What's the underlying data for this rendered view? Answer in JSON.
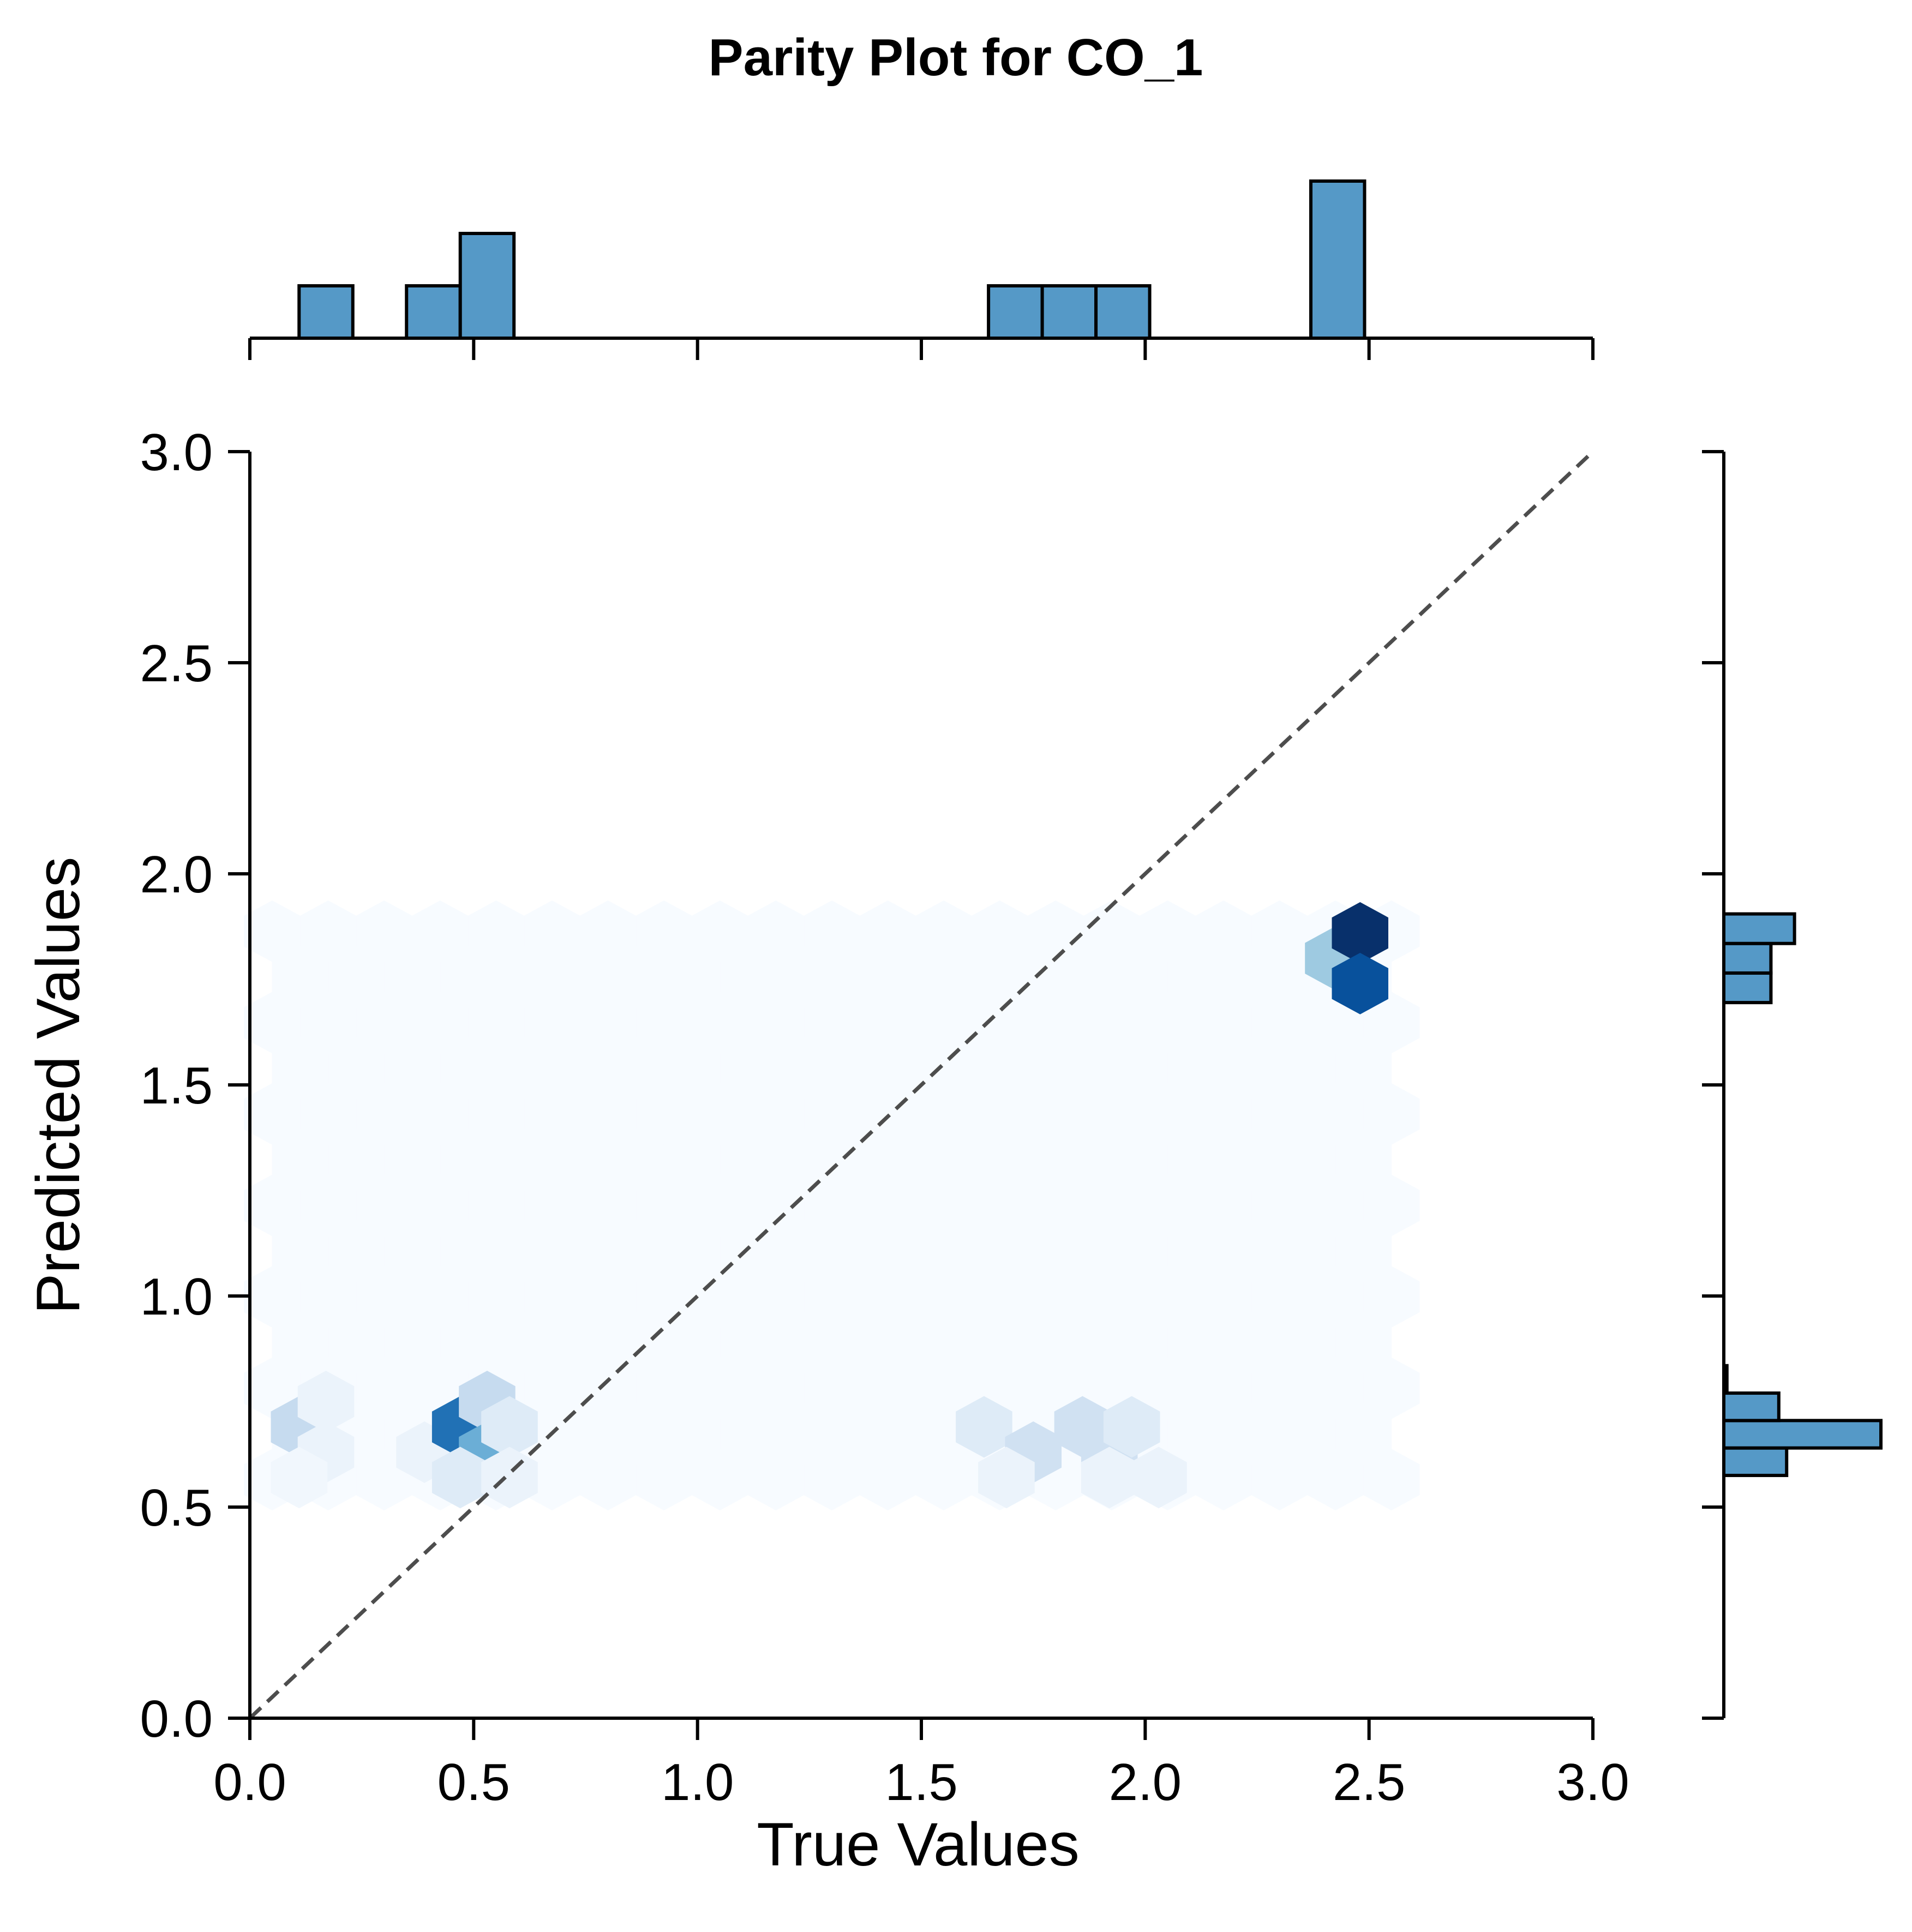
{
  "chart_data": {
    "type": "hexbin",
    "title": "Parity Plot for CO_1",
    "xlabel": "True Values",
    "ylabel": "Predicted Values",
    "xlim": [
      0,
      3
    ],
    "ylim": [
      0,
      3
    ],
    "xticks": [
      "0.0",
      "0.5",
      "1.0",
      "1.5",
      "2.0",
      "2.5",
      "3.0"
    ],
    "yticks": [
      "0.0",
      "0.5",
      "1.0",
      "1.5",
      "2.0",
      "2.5",
      "3.0"
    ],
    "tick_values": [
      0,
      0.5,
      1,
      1.5,
      2,
      2.5,
      3
    ],
    "reference_line": {
      "from": [
        0,
        0
      ],
      "to": [
        3,
        3
      ],
      "style": "dashed",
      "color": "#4d4d4d"
    },
    "hexbin": {
      "colormap": "Blues",
      "gridsize": 20,
      "extent": {
        "x": [
          0.05,
          2.55
        ],
        "y": [
          0.565,
          1.885
        ]
      },
      "cells": [
        {
          "x": 0.11,
          "y": 0.69,
          "count": 1
        },
        {
          "x": 0.17,
          "y": 0.75,
          "count": 0.25
        },
        {
          "x": 0.17,
          "y": 0.63,
          "count": 0.25
        },
        {
          "x": 0.11,
          "y": 0.57,
          "count": 0.12
        },
        {
          "x": 0.39,
          "y": 0.63,
          "count": 0.25
        },
        {
          "x": 0.47,
          "y": 0.69,
          "count": 3
        },
        {
          "x": 0.53,
          "y": 0.75,
          "count": 1
        },
        {
          "x": 0.53,
          "y": 0.63,
          "count": 2
        },
        {
          "x": 0.58,
          "y": 0.69,
          "count": 0.5
        },
        {
          "x": 0.47,
          "y": 0.57,
          "count": 0.5
        },
        {
          "x": 0.58,
          "y": 0.57,
          "count": 0.25
        },
        {
          "x": 1.64,
          "y": 0.69,
          "count": 0.5
        },
        {
          "x": 1.75,
          "y": 0.63,
          "count": 0.8
        },
        {
          "x": 1.86,
          "y": 0.69,
          "count": 0.8
        },
        {
          "x": 1.92,
          "y": 0.63,
          "count": 0.8
        },
        {
          "x": 1.97,
          "y": 0.69,
          "count": 0.5
        },
        {
          "x": 1.69,
          "y": 0.57,
          "count": 0.25
        },
        {
          "x": 1.92,
          "y": 0.57,
          "count": 0.25
        },
        {
          "x": 2.03,
          "y": 0.57,
          "count": 0.25
        },
        {
          "x": 2.42,
          "y": 1.8,
          "count": 1.5
        },
        {
          "x": 2.48,
          "y": 1.86,
          "count": 4
        },
        {
          "x": 2.48,
          "y": 1.74,
          "count": 3.5
        }
      ],
      "max_count": 4
    },
    "marginal_x": {
      "type": "histogram",
      "bins": [
        {
          "x0": 0.11,
          "x1": 0.23,
          "count": 1
        },
        {
          "x0": 0.35,
          "x1": 0.47,
          "count": 1
        },
        {
          "x0": 0.47,
          "x1": 0.59,
          "count": 2
        },
        {
          "x0": 1.65,
          "x1": 1.77,
          "count": 1
        },
        {
          "x0": 1.77,
          "x1": 1.89,
          "count": 1
        },
        {
          "x0": 1.89,
          "x1": 2.01,
          "count": 1
        },
        {
          "x0": 2.37,
          "x1": 2.49,
          "count": 3
        }
      ],
      "max_count": 3
    },
    "marginal_y": {
      "type": "histogram",
      "bins": [
        {
          "y0": 0.575,
          "y1": 0.64,
          "count": 2
        },
        {
          "y0": 0.64,
          "y1": 0.705,
          "count": 5
        },
        {
          "y0": 0.705,
          "y1": 0.77,
          "count": 1.75
        },
        {
          "y0": 0.77,
          "y1": 0.835,
          "count": 0.1
        },
        {
          "y0": 1.695,
          "y1": 1.765,
          "count": 1.5
        },
        {
          "y0": 1.765,
          "y1": 1.835,
          "count": 1.5
        },
        {
          "y0": 1.835,
          "y1": 1.905,
          "count": 2.25
        }
      ],
      "max_count": 5
    }
  }
}
